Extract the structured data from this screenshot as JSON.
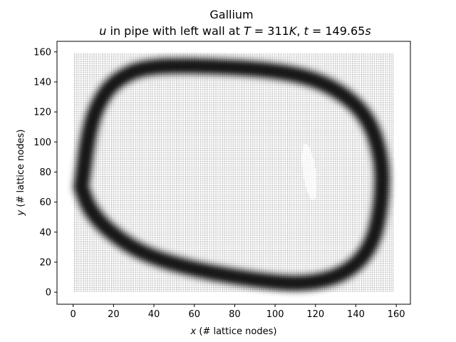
{
  "chart_data": {
    "type": "quiver",
    "title": "Gallium",
    "subtitle_parts": {
      "var": "u",
      "middle": " in pipe with left wall at ",
      "T_sym": "T",
      "T_eq": " = 311",
      "T_unit": "K",
      "sep": ", ",
      "t_sym": "t",
      "t_eq": " = 149.65",
      "t_unit": "s"
    },
    "xlabel_var": "x",
    "xlabel_text": " (# lattice nodes)",
    "ylabel_var": "y",
    "ylabel_text": " (# lattice nodes)",
    "xlim": [
      -8,
      167
    ],
    "ylim": [
      -8,
      167
    ],
    "domain": [
      0,
      159
    ],
    "xticks": [
      0,
      20,
      40,
      60,
      80,
      100,
      120,
      140,
      160
    ],
    "yticks": [
      0,
      20,
      40,
      60,
      80,
      100,
      120,
      140,
      160
    ],
    "xtick_labels": [
      "0",
      "20",
      "40",
      "60",
      "80",
      "100",
      "120",
      "140",
      "160"
    ],
    "ytick_labels": [
      "0",
      "20",
      "40",
      "60",
      "80",
      "100",
      "120",
      "140",
      "160"
    ],
    "grid": false,
    "color": "#000000",
    "flow_pattern": "single large vortex loop with dense high-velocity band near the walls",
    "vortex_path": [
      [
        4,
        70
      ],
      [
        8,
        110
      ],
      [
        14,
        130
      ],
      [
        22,
        142
      ],
      [
        35,
        150
      ],
      [
        60,
        151
      ],
      [
        100,
        148
      ],
      [
        125,
        140
      ],
      [
        145,
        120
      ],
      [
        153,
        90
      ],
      [
        153,
        60
      ],
      [
        148,
        30
      ],
      [
        135,
        12
      ],
      [
        115,
        5
      ],
      [
        90,
        8
      ],
      [
        60,
        15
      ],
      [
        35,
        25
      ],
      [
        18,
        40
      ],
      [
        8,
        55
      ],
      [
        4,
        70
      ]
    ]
  }
}
